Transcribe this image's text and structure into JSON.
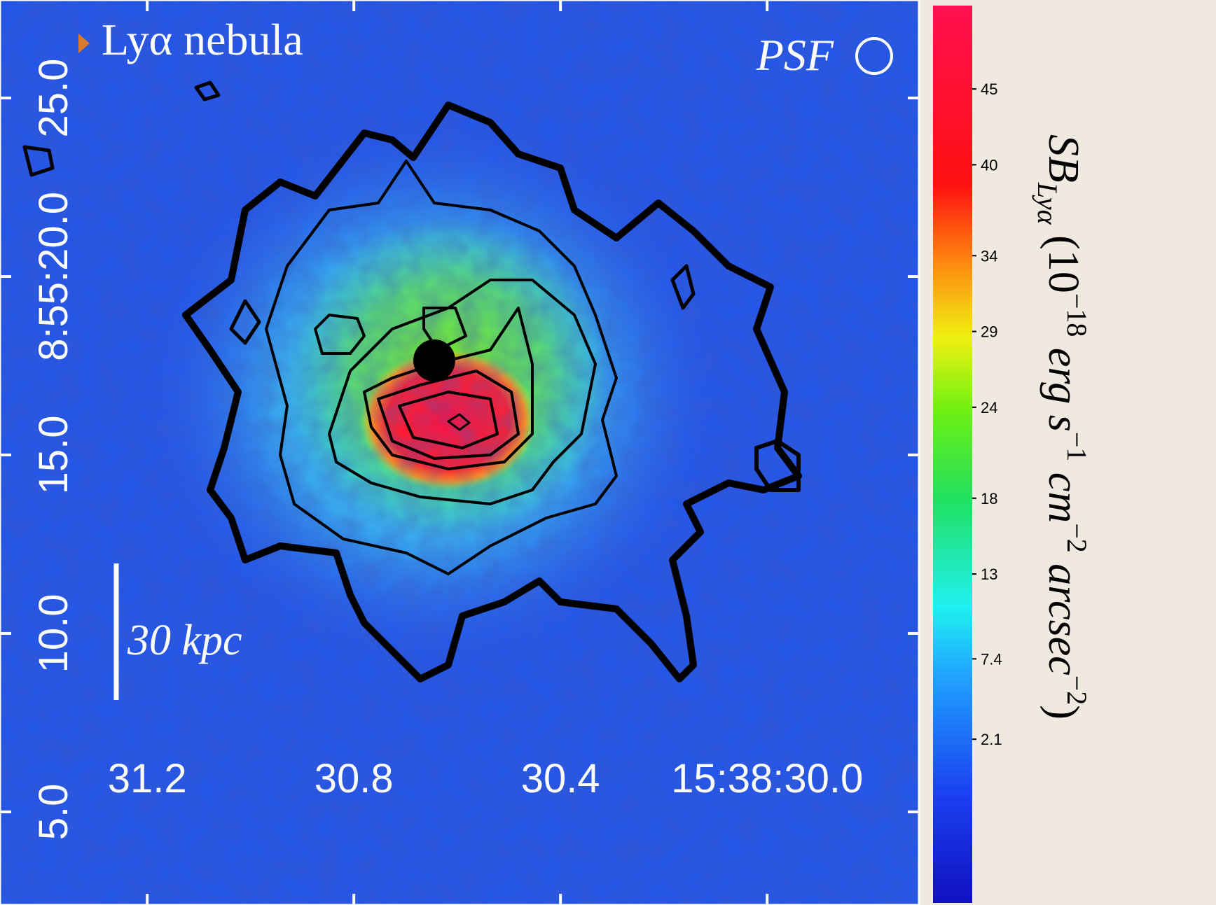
{
  "chart_data": {
    "type": "image",
    "title": "Lyα nebula",
    "psf_label": "PSF",
    "scale_label": "30 kpc",
    "xlim": [
      31.485,
      29.706
    ],
    "xticks": [
      31.2,
      30.8,
      30.4,
      {
        "value": 30.0,
        "label": "15:38:30.0"
      }
    ],
    "ylim": [
      2.45,
      27.51
    ],
    "yticks": [
      {
        "value": 5,
        "label": "5.0"
      },
      {
        "value": 10,
        "label": "10.0"
      },
      {
        "value": 15,
        "label": "15.0"
      },
      {
        "value": 20,
        "label": "8:55:20.0"
      },
      {
        "value": 25,
        "label": "25.0"
      }
    ],
    "colorbar": {
      "label_parts": [
        "SB",
        "Lyα",
        " (10",
        "−18",
        " erg s",
        "−1",
        " cm",
        "−2",
        " arcsec",
        "−2",
        ")"
      ],
      "lim": [
        -8.7,
        50.5
      ],
      "ticks": [
        2.1,
        7.4,
        13,
        18,
        24,
        29,
        34,
        40,
        45
      ]
    }
  }
}
